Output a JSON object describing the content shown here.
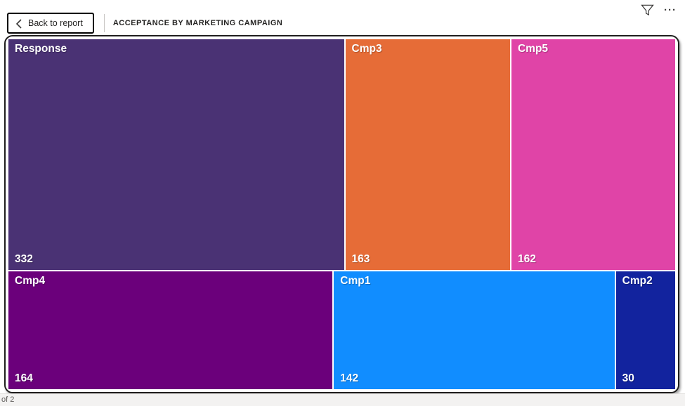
{
  "header": {
    "back_label": "Back to report",
    "title": "ACCEPTANCE BY MARKETING CAMPAIGN",
    "filter_icon": "filter-funnel",
    "more_icon": "ellipsis",
    "more_glyph": "···"
  },
  "footer": {
    "page_indicator": "of 2"
  },
  "chart_data": {
    "type": "treemap",
    "title": "ACCEPTANCE BY MARKETING CAMPAIGN",
    "legend_position": "none",
    "tiles": [
      {
        "label": "Response",
        "value": 332,
        "color": "#4A3274"
      },
      {
        "label": "Cmp3",
        "value": 163,
        "color": "#E66C37"
      },
      {
        "label": "Cmp5",
        "value": 162,
        "color": "#E044A7"
      },
      {
        "label": "Cmp4",
        "value": 164,
        "color": "#6B007B"
      },
      {
        "label": "Cmp1",
        "value": 142,
        "color": "#118DFF"
      },
      {
        "label": "Cmp2",
        "value": 30,
        "color": "#12239E"
      }
    ],
    "rows": [
      [
        0,
        1,
        2
      ],
      [
        3,
        4,
        5
      ]
    ]
  }
}
